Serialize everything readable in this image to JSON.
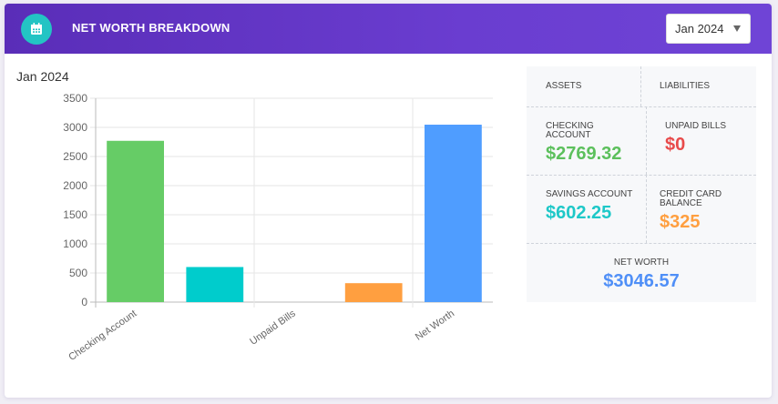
{
  "header": {
    "title": "NET WORTH BREAKDOWN",
    "icon": "calendar-icon",
    "month_select": {
      "selected": "Jan 2024",
      "options": [
        "Jan 2024"
      ]
    }
  },
  "chart_heading": "Jan 2024",
  "chart_data": {
    "type": "bar",
    "categories": [
      "Checking Account",
      "Savings Account",
      "Unpaid Bills",
      "Credit Card Balance",
      "Net Worth"
    ],
    "visible_category_labels": [
      "Checking Account",
      "Unpaid Bills",
      "Net Worth"
    ],
    "values": [
      2769.32,
      602.25,
      0,
      325,
      3046.57
    ],
    "colors": [
      "#66cc66",
      "#00cccc",
      "#9e9e9e",
      "#ff9f40",
      "#4f9dff"
    ],
    "yticks": [
      0,
      500,
      1000,
      1500,
      2000,
      2500,
      3000,
      3500
    ],
    "ylim": [
      0,
      3500
    ],
    "grid": true
  },
  "summary": {
    "assets_label": "ASSETS",
    "liabilities_label": "LIABILITIES",
    "checking_label": "CHECKING ACCOUNT",
    "checking_value": "$2769.32",
    "unpaid_label": "UNPAID BILLS",
    "unpaid_value": "$0",
    "savings_label": "SAVINGS ACCOUNT",
    "savings_value": "$602.25",
    "credit_label": "CREDIT CARD BALANCE",
    "credit_value": "$325",
    "net_label": "NET WORTH",
    "net_value": "$3046.57",
    "colors": {
      "green": "#5cc05c",
      "red": "#e84a4a",
      "teal": "#1ec8c8",
      "orange": "#ff9f40",
      "blue": "#4f8ff7"
    }
  }
}
